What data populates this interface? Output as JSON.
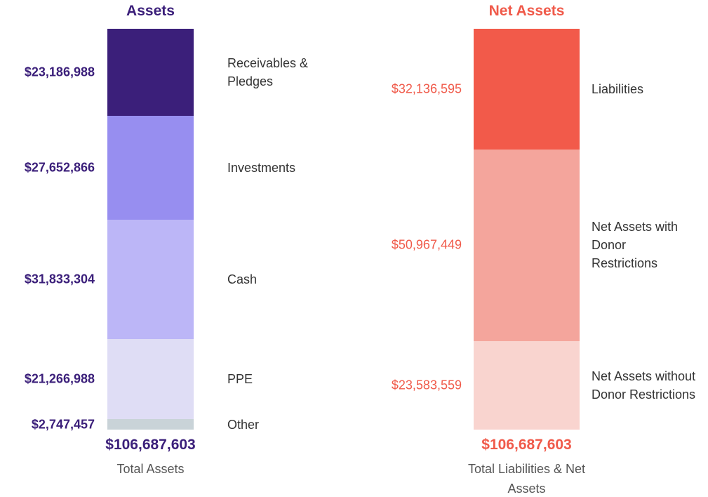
{
  "chart_data": [
    {
      "type": "stacked-bar",
      "title": "Assets",
      "color": "#3b1f7a",
      "series": [
        {
          "name": "Receivables & Pledges",
          "color": "#3b1f7a",
          "values": [
            23186988
          ],
          "value_labels": [
            "$23,186,988"
          ]
        },
        {
          "name": "Investments",
          "color": "#978ef0",
          "values": [
            27652866
          ],
          "value_labels": [
            "$27,652,866"
          ]
        },
        {
          "name": "Cash",
          "color": "#bcb6f7",
          "values": [
            31833304
          ],
          "value_labels": [
            "$31,833,304"
          ]
        },
        {
          "name": "PPE",
          "color": "#dfddf5",
          "values": [
            21266988
          ],
          "value_labels": [
            "$21,266,988"
          ]
        },
        {
          "name": "Other",
          "color": "#c9d3d8",
          "values": [
            2747457
          ],
          "value_labels": [
            "$2,747,457"
          ]
        }
      ],
      "total": 106687603,
      "total_label": "$106,687,603",
      "total_caption": "Total Assets",
      "value_label_bold": true
    },
    {
      "type": "stacked-bar",
      "title": "Net Assets",
      "color": "#f05a4a",
      "series": [
        {
          "name": "Liabilities",
          "color": "#f25a4a",
          "values": [
            32136595
          ],
          "value_labels": [
            "$32,136,595"
          ]
        },
        {
          "name": "Net Assets with Donor Restrictions",
          "color": "#f4a59c",
          "values": [
            50967449
          ],
          "value_labels": [
            "$50,967,449"
          ]
        },
        {
          "name": "Net Assets without Donor Restrictions",
          "color": "#f9d4cf",
          "values": [
            23583559
          ],
          "value_labels": [
            "$23,583,559"
          ]
        }
      ],
      "total": 106687603,
      "total_label": "$106,687,603",
      "total_caption": "Total Liabilities & Net Assets",
      "value_label_bold": false
    }
  ]
}
